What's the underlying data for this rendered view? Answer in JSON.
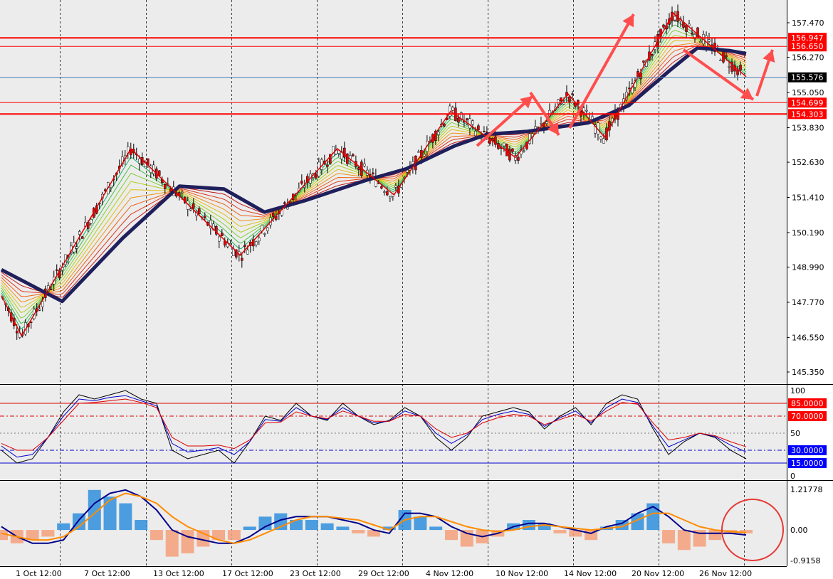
{
  "chart_data": [
    {
      "type": "candlestick",
      "panel": "price",
      "ylim": [
        145.0,
        158.0
      ],
      "grid": true,
      "y_ticks": [
        "157.470",
        "156.270",
        "155.050",
        "153.830",
        "152.630",
        "151.410",
        "150.190",
        "148.990",
        "147.770",
        "146.550",
        "145.350"
      ],
      "x_ticks": [
        "1 Oct 12:00",
        "7 Oct 12:00",
        "13 Oct 12:00",
        "17 Oct 12:00",
        "23 Oct 12:00",
        "29 Oct 12:00",
        "4 Nov 12:00",
        "10 Nov 12:00",
        "14 Nov 12:00",
        "20 Nov 12:00",
        "26 Nov 12:00"
      ],
      "current_price": "155.576",
      "levels": [
        {
          "label": "156.947",
          "value": 156.947
        },
        {
          "label": "156.650",
          "value": 156.65
        },
        {
          "label": "154.699",
          "value": 154.699
        },
        {
          "label": "154.303",
          "value": 154.303
        }
      ],
      "zigzag": [
        {
          "x": 0.0,
          "y": 148.0
        },
        {
          "x": 0.5,
          "y": 146.6
        },
        {
          "x": 3.2,
          "y": 153.1
        },
        {
          "x": 5.9,
          "y": 149.4
        },
        {
          "x": 8.3,
          "y": 153.1
        },
        {
          "x": 9.7,
          "y": 151.5
        },
        {
          "x": 11.1,
          "y": 154.4
        },
        {
          "x": 12.7,
          "y": 152.8
        },
        {
          "x": 14.0,
          "y": 155.0
        },
        {
          "x": 14.9,
          "y": 153.5
        },
        {
          "x": 16.6,
          "y": 157.8
        },
        {
          "x": 18.4,
          "y": 155.6
        }
      ],
      "ma_thick": [
        {
          "x": 0.0,
          "y": 148.9
        },
        {
          "x": 1.5,
          "y": 147.8
        },
        {
          "x": 3.0,
          "y": 150.0
        },
        {
          "x": 4.4,
          "y": 151.8
        },
        {
          "x": 5.5,
          "y": 151.7
        },
        {
          "x": 6.5,
          "y": 150.9
        },
        {
          "x": 7.5,
          "y": 151.3
        },
        {
          "x": 9.0,
          "y": 152.0
        },
        {
          "x": 10.0,
          "y": 152.4
        },
        {
          "x": 11.2,
          "y": 153.2
        },
        {
          "x": 12.0,
          "y": 153.6
        },
        {
          "x": 13.0,
          "y": 153.7
        },
        {
          "x": 14.5,
          "y": 154.0
        },
        {
          "x": 15.5,
          "y": 154.6
        },
        {
          "x": 16.5,
          "y": 155.8
        },
        {
          "x": 17.2,
          "y": 156.6
        },
        {
          "x": 18.0,
          "y": 156.5
        },
        {
          "x": 18.4,
          "y": 156.4
        }
      ],
      "annotations": [
        "red-arrow-down",
        "red-arrow-up"
      ]
    },
    {
      "type": "line",
      "panel": "stochastic",
      "ylim": [
        0,
        100
      ],
      "y_ticks": [
        "100",
        "50",
        "0"
      ],
      "levels": [
        {
          "label": "85.0000",
          "value": 85
        },
        {
          "label": "70.0000",
          "value": 70
        },
        {
          "label": "30.0000",
          "value": 30
        },
        {
          "label": "15.0000",
          "value": 15
        }
      ],
      "series": [
        {
          "color": "#000000",
          "values": [
            30,
            15,
            20,
            45,
            75,
            95,
            90,
            95,
            100,
            90,
            85,
            30,
            20,
            25,
            30,
            15,
            40,
            70,
            65,
            85,
            70,
            65,
            85,
            70,
            60,
            65,
            80,
            70,
            45,
            30,
            45,
            70,
            75,
            80,
            75,
            55,
            70,
            80,
            60,
            85,
            95,
            90,
            55,
            25,
            40,
            50,
            45,
            30,
            20
          ]
        },
        {
          "color": "#0000cc",
          "values": [
            35,
            22,
            25,
            45,
            70,
            90,
            88,
            92,
            94,
            88,
            82,
            38,
            28,
            30,
            33,
            25,
            40,
            66,
            64,
            80,
            70,
            66,
            80,
            70,
            62,
            64,
            76,
            70,
            50,
            38,
            48,
            66,
            72,
            76,
            72,
            58,
            68,
            76,
            62,
            80,
            90,
            86,
            58,
            34,
            42,
            50,
            46,
            36,
            28
          ]
        },
        {
          "color": "#dd0000",
          "values": [
            38,
            30,
            30,
            45,
            65,
            85,
            86,
            88,
            90,
            86,
            80,
            45,
            35,
            35,
            36,
            32,
            42,
            62,
            63,
            75,
            70,
            67,
            76,
            70,
            64,
            64,
            72,
            70,
            55,
            45,
            50,
            62,
            68,
            72,
            70,
            60,
            66,
            72,
            64,
            76,
            86,
            84,
            62,
            42,
            45,
            50,
            47,
            40,
            34
          ]
        }
      ]
    },
    {
      "type": "bar",
      "panel": "macd",
      "ylim": [
        -0.9158,
        1.21778
      ],
      "y_ticks": [
        "1.21778",
        "0.00",
        "-0.9158"
      ],
      "histogram": [
        -0.3,
        -0.4,
        -0.3,
        -0.2,
        0.2,
        0.5,
        1.2,
        1.0,
        0.8,
        0.3,
        -0.3,
        -0.8,
        -0.7,
        -0.5,
        -0.3,
        -0.3,
        0.1,
        0.4,
        0.5,
        0.3,
        0.3,
        0.2,
        0.1,
        -0.1,
        -0.2,
        0.1,
        0.6,
        0.4,
        0.1,
        -0.3,
        -0.5,
        -0.4,
        -0.2,
        0.2,
        0.3,
        0.2,
        -0.1,
        -0.2,
        -0.3,
        0.1,
        0.3,
        0.5,
        0.8,
        -0.4,
        -0.6,
        -0.5,
        -0.3,
        -0.1,
        -0.1
      ],
      "series": [
        {
          "color": "#00008b",
          "values": [
            0.1,
            -0.2,
            -0.4,
            -0.4,
            -0.3,
            0.3,
            0.8,
            1.1,
            1.2,
            1.0,
            0.6,
            0.0,
            -0.2,
            -0.3,
            -0.4,
            -0.4,
            -0.2,
            0.1,
            0.3,
            0.4,
            0.4,
            0.4,
            0.3,
            0.2,
            0.0,
            -0.1,
            0.5,
            0.5,
            0.4,
            0.1,
            -0.1,
            -0.2,
            -0.1,
            0.1,
            0.2,
            0.2,
            0.1,
            0.0,
            -0.1,
            0.1,
            0.2,
            0.5,
            0.7,
            0.4,
            0.0,
            -0.1,
            -0.1,
            -0.1,
            -0.15
          ]
        },
        {
          "color": "#ff8c00",
          "values": [
            -0.1,
            -0.2,
            -0.3,
            -0.3,
            -0.2,
            0.1,
            0.5,
            0.9,
            1.1,
            1.0,
            0.8,
            0.4,
            0.1,
            -0.1,
            -0.3,
            -0.4,
            -0.3,
            -0.1,
            0.1,
            0.3,
            0.4,
            0.4,
            0.35,
            0.3,
            0.15,
            0.0,
            0.3,
            0.4,
            0.4,
            0.25,
            0.1,
            0.0,
            -0.05,
            0.0,
            0.1,
            0.15,
            0.1,
            0.05,
            0.0,
            0.05,
            0.1,
            0.3,
            0.5,
            0.5,
            0.3,
            0.1,
            0.0,
            -0.05,
            -0.08
          ]
        }
      ]
    }
  ]
}
